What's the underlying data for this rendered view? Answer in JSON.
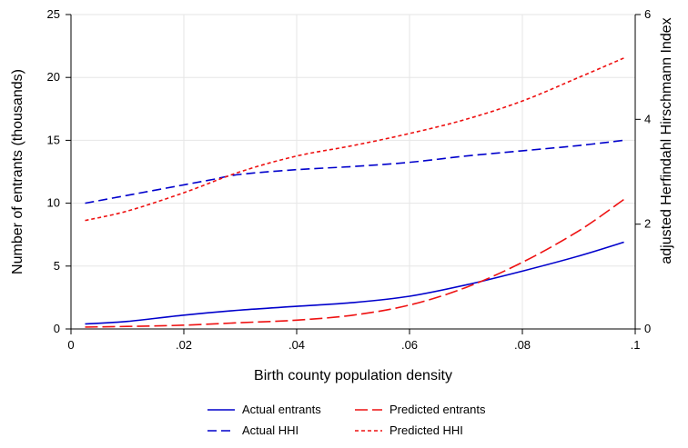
{
  "chart_data": {
    "type": "line",
    "xlabel": "Birth county population density",
    "ylabel_left": "Number of entrants (thousands)",
    "ylabel_right": "adjusted Herfindahl Hirschmann Index",
    "x_range": [
      0,
      0.1
    ],
    "ylim_left": [
      0,
      25
    ],
    "ylim_right": [
      0,
      6
    ],
    "x_ticks": [
      0,
      0.02,
      0.04,
      0.06,
      0.08,
      0.1
    ],
    "x_tick_labels": [
      "0",
      ".02",
      ".04",
      ".06",
      ".08",
      ".1"
    ],
    "y_left_ticks": [
      0,
      5,
      10,
      15,
      20,
      25
    ],
    "y_left_tick_labels": [
      "0",
      "5",
      "10",
      "15",
      "20",
      "25"
    ],
    "y_right_ticks": [
      0,
      2,
      4,
      6
    ],
    "y_right_tick_labels": [
      "0",
      "2",
      "4",
      "6"
    ],
    "grid": true,
    "legend_position": "bottom",
    "series": [
      {
        "name": "Actual entrants",
        "axis": "left",
        "color": "#0000cc",
        "dash": "solid",
        "x": [
          0.0025,
          0.01,
          0.02,
          0.03,
          0.04,
          0.05,
          0.06,
          0.07,
          0.08,
          0.09,
          0.098
        ],
        "y": [
          0.4,
          0.6,
          1.1,
          1.5,
          1.8,
          2.1,
          2.6,
          3.5,
          4.6,
          5.8,
          6.9
        ]
      },
      {
        "name": "Predicted entrants",
        "axis": "left",
        "color": "#ee1111",
        "dash": "longdash",
        "x": [
          0.0025,
          0.01,
          0.02,
          0.03,
          0.04,
          0.05,
          0.06,
          0.07,
          0.08,
          0.09,
          0.098
        ],
        "y": [
          0.15,
          0.2,
          0.3,
          0.5,
          0.7,
          1.1,
          1.9,
          3.3,
          5.3,
          7.8,
          10.3
        ]
      },
      {
        "name": "Actual HHI",
        "axis": "right",
        "color": "#0000cc",
        "dash": "dash",
        "x": [
          0.0025,
          0.01,
          0.02,
          0.025,
          0.03,
          0.04,
          0.05,
          0.06,
          0.07,
          0.08,
          0.09,
          0.098
        ],
        "y": [
          2.4,
          2.55,
          2.75,
          2.85,
          2.95,
          3.04,
          3.1,
          3.18,
          3.3,
          3.4,
          3.5,
          3.6
        ]
      },
      {
        "name": "Predicted HHI",
        "axis": "right",
        "color": "#ee1111",
        "dash": "shortdash",
        "x": [
          0.0025,
          0.01,
          0.02,
          0.03,
          0.04,
          0.05,
          0.06,
          0.07,
          0.08,
          0.09,
          0.098
        ],
        "y": [
          2.07,
          2.25,
          2.6,
          3.0,
          3.3,
          3.5,
          3.73,
          4.0,
          4.35,
          4.8,
          5.17
        ]
      }
    ],
    "legend_order": [
      "Actual entrants",
      "Predicted entrants",
      "Actual HHI",
      "Predicted HHI"
    ]
  }
}
